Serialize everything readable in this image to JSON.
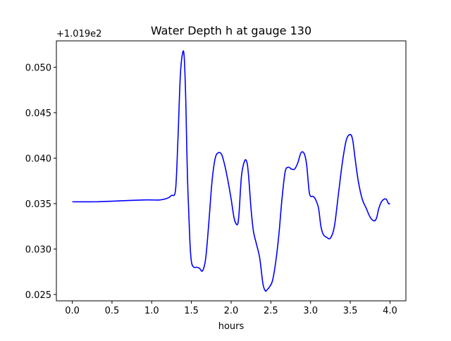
{
  "chart_data": {
    "type": "line",
    "title": "Water Depth h at gauge 130",
    "xlabel": "hours",
    "ylabel": "",
    "y_offset_label": "+1.019e2",
    "xlim": [
      -0.2,
      4.2
    ],
    "ylim": [
      0.0243,
      0.0529
    ],
    "x_ticks": [
      0.0,
      0.5,
      1.0,
      1.5,
      2.0,
      2.5,
      3.0,
      3.5,
      4.0
    ],
    "x_tick_labels": [
      "0.0",
      "0.5",
      "1.0",
      "1.5",
      "2.0",
      "2.5",
      "3.0",
      "3.5",
      "4.0"
    ],
    "y_ticks": [
      0.025,
      0.03,
      0.035,
      0.04,
      0.045,
      0.05
    ],
    "y_tick_labels": [
      "0.025",
      "0.030",
      "0.035",
      "0.040",
      "0.045",
      "0.050"
    ],
    "grid": false,
    "series": [
      {
        "color": "#0000ff",
        "x": [
          0.0,
          0.3,
          0.6,
          0.9,
          1.0,
          1.1,
          1.2,
          1.25,
          1.3,
          1.33,
          1.36,
          1.39,
          1.41,
          1.43,
          1.45,
          1.48,
          1.5,
          1.53,
          1.56,
          1.6,
          1.64,
          1.68,
          1.72,
          1.76,
          1.8,
          1.84,
          1.88,
          1.92,
          1.96,
          2.0,
          2.04,
          2.08,
          2.1,
          2.13,
          2.17,
          2.2,
          2.22,
          2.25,
          2.28,
          2.32,
          2.36,
          2.4,
          2.43,
          2.45,
          2.48,
          2.52,
          2.56,
          2.6,
          2.64,
          2.68,
          2.72,
          2.76,
          2.8,
          2.84,
          2.88,
          2.92,
          2.95,
          2.98,
          3.0,
          3.03,
          3.06,
          3.1,
          3.13,
          3.16,
          3.2,
          3.25,
          3.3,
          3.35,
          3.4,
          3.45,
          3.5,
          3.53,
          3.56,
          3.6,
          3.65,
          3.7,
          3.75,
          3.8,
          3.83,
          3.86,
          3.9,
          3.95,
          3.98,
          4.0
        ],
        "y": [
          0.0352,
          0.0352,
          0.0353,
          0.0354,
          0.0354,
          0.0354,
          0.0356,
          0.0359,
          0.0365,
          0.042,
          0.049,
          0.0516,
          0.051,
          0.046,
          0.038,
          0.031,
          0.0286,
          0.028,
          0.028,
          0.0279,
          0.0276,
          0.029,
          0.033,
          0.0375,
          0.04,
          0.0406,
          0.0404,
          0.0392,
          0.0375,
          0.0355,
          0.0333,
          0.0327,
          0.034,
          0.038,
          0.0397,
          0.0395,
          0.038,
          0.0345,
          0.032,
          0.0305,
          0.029,
          0.0262,
          0.0254,
          0.0255,
          0.0258,
          0.0265,
          0.0285,
          0.0315,
          0.0355,
          0.0385,
          0.039,
          0.0388,
          0.0388,
          0.0395,
          0.0406,
          0.0405,
          0.0393,
          0.0365,
          0.0358,
          0.0358,
          0.0355,
          0.0345,
          0.0325,
          0.0316,
          0.0313,
          0.0312,
          0.0325,
          0.036,
          0.0395,
          0.042,
          0.0426,
          0.042,
          0.04,
          0.0375,
          0.0355,
          0.0345,
          0.0335,
          0.0331,
          0.0334,
          0.0345,
          0.0353,
          0.0355,
          0.035,
          0.035
        ]
      }
    ]
  }
}
